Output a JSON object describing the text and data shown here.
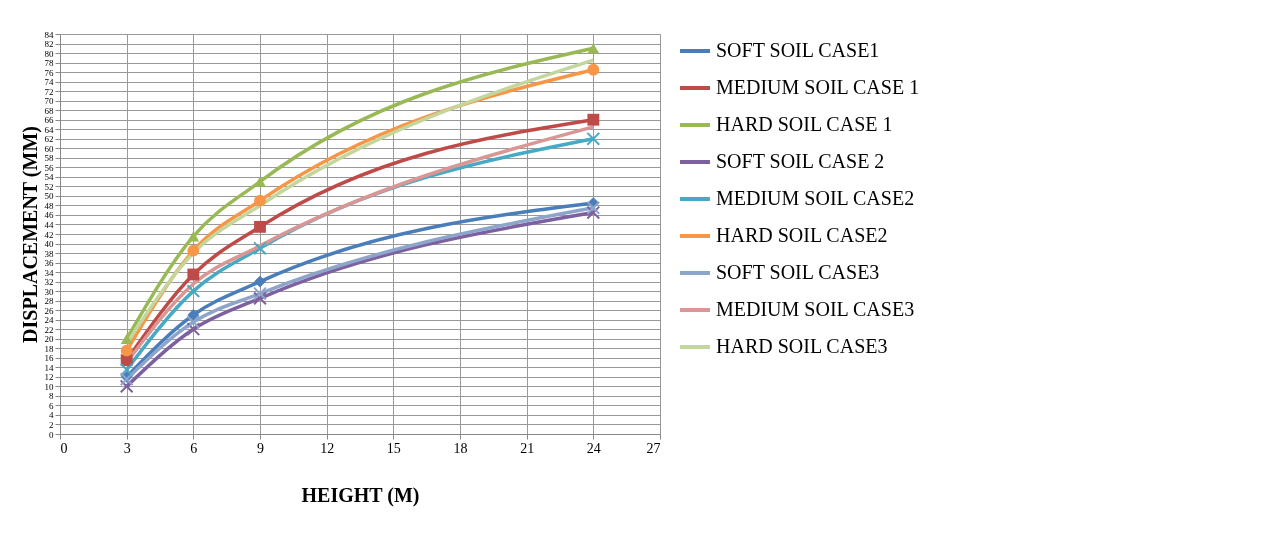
{
  "chart_data": {
    "type": "line",
    "xlabel": "HEIGHT (M)",
    "ylabel": "DISPLACEMENT (MM)",
    "x": [
      3,
      6,
      9,
      24
    ],
    "xlim": [
      0,
      27
    ],
    "xticks": [
      0,
      3,
      6,
      9,
      12,
      15,
      18,
      21,
      24,
      27
    ],
    "ylim": [
      0,
      84
    ],
    "yticks": [
      0,
      2,
      4,
      6,
      8,
      10,
      12,
      14,
      16,
      18,
      20,
      22,
      24,
      26,
      28,
      30,
      32,
      34,
      36,
      38,
      40,
      42,
      44,
      46,
      48,
      50,
      52,
      54,
      56,
      58,
      60,
      62,
      64,
      66,
      68,
      70,
      72,
      74,
      76,
      78,
      80,
      82,
      84
    ],
    "grid": true,
    "legend": "right",
    "line_style": "solid",
    "series": [
      {
        "name": "SOFT SOIL CASE1",
        "color": "#4a7ebb",
        "marker": "diamond",
        "values": [
          12,
          25,
          32,
          48.5
        ]
      },
      {
        "name": "MEDIUM SOIL CASE 1",
        "color": "#be4b48",
        "marker": "square",
        "values": [
          15.5,
          33.5,
          43.5,
          66
        ]
      },
      {
        "name": "HARD SOIL CASE 1",
        "color": "#98b954",
        "marker": "triangle",
        "values": [
          20,
          41.5,
          53,
          81
        ]
      },
      {
        "name": "SOFT SOIL CASE 2",
        "color": "#7d60a0",
        "marker": "cross",
        "values": [
          10,
          22,
          28.5,
          46.5
        ]
      },
      {
        "name": "MEDIUM SOIL CASE2",
        "color": "#46aac5",
        "marker": "cross",
        "values": [
          13.5,
          30,
          39,
          62
        ]
      },
      {
        "name": "HARD SOIL CASE2",
        "color": "#f79646",
        "marker": "circle",
        "values": [
          17.5,
          38.5,
          49,
          76.5
        ]
      },
      {
        "name": "SOFT SOIL CASE3",
        "color": "#8ea5cb",
        "marker": "cross",
        "values": [
          11.5,
          23.5,
          29.5,
          47.5
        ]
      },
      {
        "name": "MEDIUM SOIL CASE3",
        "color": "#d99694",
        "marker": "none",
        "values": [
          15,
          31.5,
          39.5,
          64.5
        ]
      },
      {
        "name": "HARD SOIL CASE3",
        "color": "#c3d69b",
        "marker": "none",
        "values": [
          19,
          38,
          48,
          78.5
        ]
      }
    ]
  }
}
